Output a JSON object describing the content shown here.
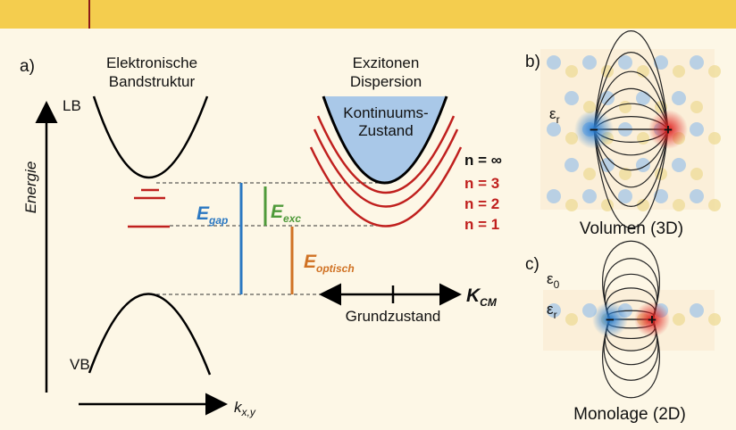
{
  "panel_a": {
    "label": "a)",
    "band_title": [
      "Elektronische",
      "Bandstruktur"
    ],
    "exciton_title": [
      "Exzitonen",
      "Dispersion"
    ],
    "energy_axis": "Energie",
    "conduction_band": "LB",
    "valence_band": "VB",
    "k_axis": {
      "main": "k",
      "sub": "x,y"
    },
    "continuum": [
      "Kontinuums-",
      "Zustand"
    ],
    "levels": [
      "n = ∞",
      "n = 3",
      "n = 2",
      "n = 1"
    ],
    "e_gap": {
      "main": "E",
      "sub": "gap"
    },
    "e_exc": {
      "main": "E",
      "sub": "exc"
    },
    "e_optical": {
      "main": "E",
      "sub": "optisch"
    },
    "k_cm": {
      "main": "K",
      "sub": "CM"
    },
    "ground_state": "Grundzustand"
  },
  "panel_b": {
    "label": "b)",
    "epsilon_r": {
      "main": "ε",
      "sub": "r"
    },
    "minus": "−",
    "plus": "+",
    "caption": "Volumen (3D)"
  },
  "panel_c": {
    "label": "c)",
    "epsilon_0": {
      "main": "ε",
      "sub": "0"
    },
    "epsilon_r": {
      "main": "ε",
      "sub": "r"
    },
    "minus": "−",
    "plus": "+",
    "caption": "Monolage (2D)"
  }
}
